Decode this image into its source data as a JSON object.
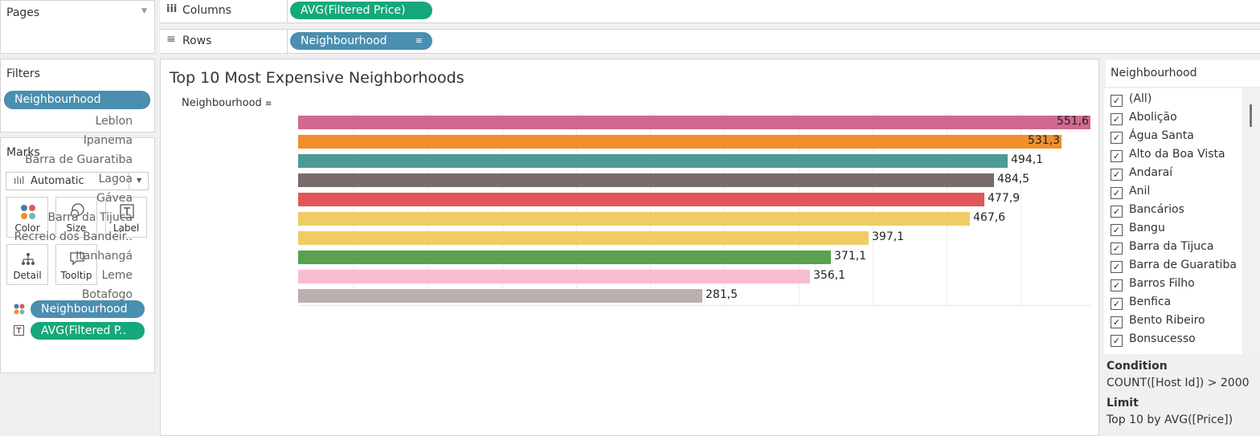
{
  "shelves": {
    "pages_label": "Pages",
    "columns_icon": "iii",
    "columns_label": "Columns",
    "columns_pill": "AVG(Filtered Price)",
    "rows_icon": "≡",
    "rows_label": "Rows",
    "rows_pill": "Neighbourhood"
  },
  "filters": {
    "title": "Filters",
    "pill": "Neighbourhood"
  },
  "marks": {
    "title": "Marks",
    "type": "Automatic",
    "buttons": {
      "color": "Color",
      "size": "Size",
      "label": "Label",
      "detail": "Detail",
      "tooltip": "Tooltip"
    },
    "fields": [
      "Neighbourhood",
      "AVG(Filtered P.."
    ]
  },
  "view": {
    "title": "Top 10 Most Expensive Neighborhoods",
    "row_header": "Neighbourhood"
  },
  "chart_data": {
    "type": "bar",
    "orientation": "horizontal",
    "title": "Top 10 Most Expensive Neighborhoods",
    "ylabel": "Neighbourhood",
    "categories": [
      "Leblon",
      "Ipanema",
      "Barra de Guaratiba",
      "Lagoa",
      "Gávea",
      "Barra da Tijuca",
      "Recreio dos Bandeir..",
      "Itanhangá",
      "Leme",
      "Botafogo"
    ],
    "values": [
      551.6,
      531.3,
      494.1,
      484.5,
      477.9,
      467.6,
      397.1,
      371.1,
      356.1,
      281.5
    ],
    "value_labels": [
      "551,6",
      "531,3",
      "494,1",
      "484,5",
      "477,9",
      "467,6",
      "397,1",
      "371,1",
      "356,1",
      "281,5"
    ],
    "colors": [
      "#d0688f",
      "#f28e2b",
      "#4e9a95",
      "#7a6c6a",
      "#e15759",
      "#f0cc64",
      "#f0cc64",
      "#59a14f",
      "#f8bcd1",
      "#bab0ac"
    ],
    "xlim": [
      0,
      551.6
    ]
  },
  "filter_card": {
    "title": "Neighbourhood",
    "items": [
      "(All)",
      "Abolição",
      "Água Santa",
      "Alto da Boa Vista",
      "Andaraí",
      "Anil",
      "Bancários",
      "Bangu",
      "Barra da Tijuca",
      "Barra de Guaratiba",
      "Barros Filho",
      "Benfica",
      "Bento Ribeiro",
      "Bonsucesso"
    ],
    "condition_title": "Condition",
    "condition_value": "COUNT([Host Id]) > 2000",
    "limit_title": "Limit",
    "limit_value": "Top 10 by AVG([Price])"
  }
}
